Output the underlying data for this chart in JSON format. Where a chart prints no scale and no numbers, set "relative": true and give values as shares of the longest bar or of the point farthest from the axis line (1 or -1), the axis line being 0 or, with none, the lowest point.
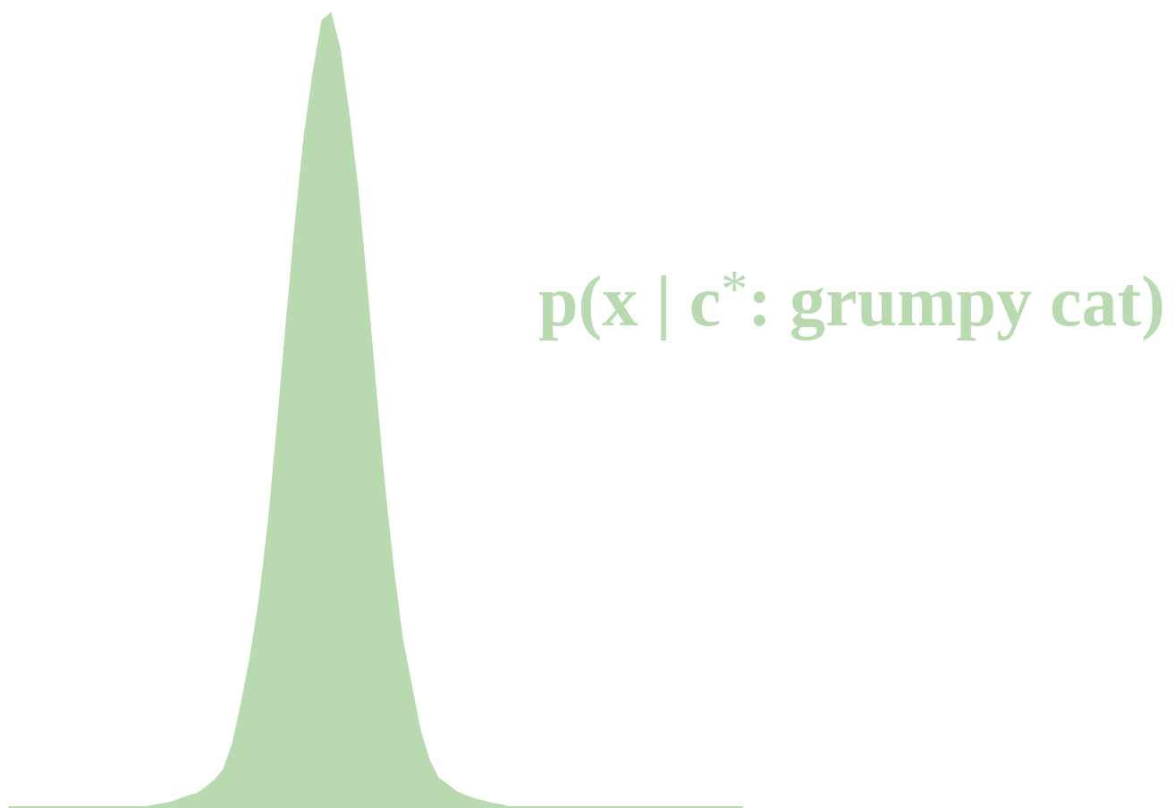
{
  "chart_data": {
    "type": "area",
    "relative": true,
    "categories": [
      null,
      null,
      null,
      null,
      null,
      null,
      null,
      null,
      null,
      null,
      null,
      null,
      null,
      null,
      null,
      null,
      null,
      null,
      null,
      null,
      null,
      null,
      null,
      null,
      null,
      null,
      null,
      null,
      null,
      null,
      null,
      null,
      null,
      null,
      null,
      null,
      null,
      null,
      null,
      null,
      null,
      null,
      null,
      null,
      null,
      null,
      null,
      null,
      null,
      null,
      null,
      null,
      null,
      null,
      null,
      null,
      null,
      null,
      null,
      null,
      null,
      null,
      null,
      null,
      null,
      null,
      null,
      null,
      null,
      null,
      null,
      null,
      null,
      null,
      null,
      null,
      null,
      null,
      null,
      null,
      null,
      null,
      null
    ],
    "series": [
      {
        "name": "p(x | c$^{*}$: grumpy cat)",
        "color": "#b9d9b0",
        "values": [
          0,
          0,
          0,
          0,
          0,
          0,
          0,
          0,
          0,
          0,
          0,
          0,
          0,
          0,
          0,
          0,
          0.002,
          0.004,
          0.006,
          0.01,
          0.014,
          0.017,
          0.025,
          0.034,
          0.048,
          0.08,
          0.132,
          0.19,
          0.262,
          0.359,
          0.48,
          0.609,
          0.734,
          0.844,
          0.924,
          0.99,
          1.0,
          0.956,
          0.876,
          0.781,
          0.661,
          0.531,
          0.406,
          0.301,
          0.213,
          0.155,
          0.097,
          0.06,
          0.037,
          0.029,
          0.02,
          0.015,
          0.011,
          0.008,
          0.005,
          0.003,
          0,
          0,
          0,
          0,
          0,
          0,
          0,
          0,
          0,
          0,
          0,
          0,
          0,
          0,
          0,
          0,
          0,
          0,
          0,
          0,
          0,
          0,
          0,
          0,
          0,
          0,
          0
        ]
      }
    ]
  }
}
